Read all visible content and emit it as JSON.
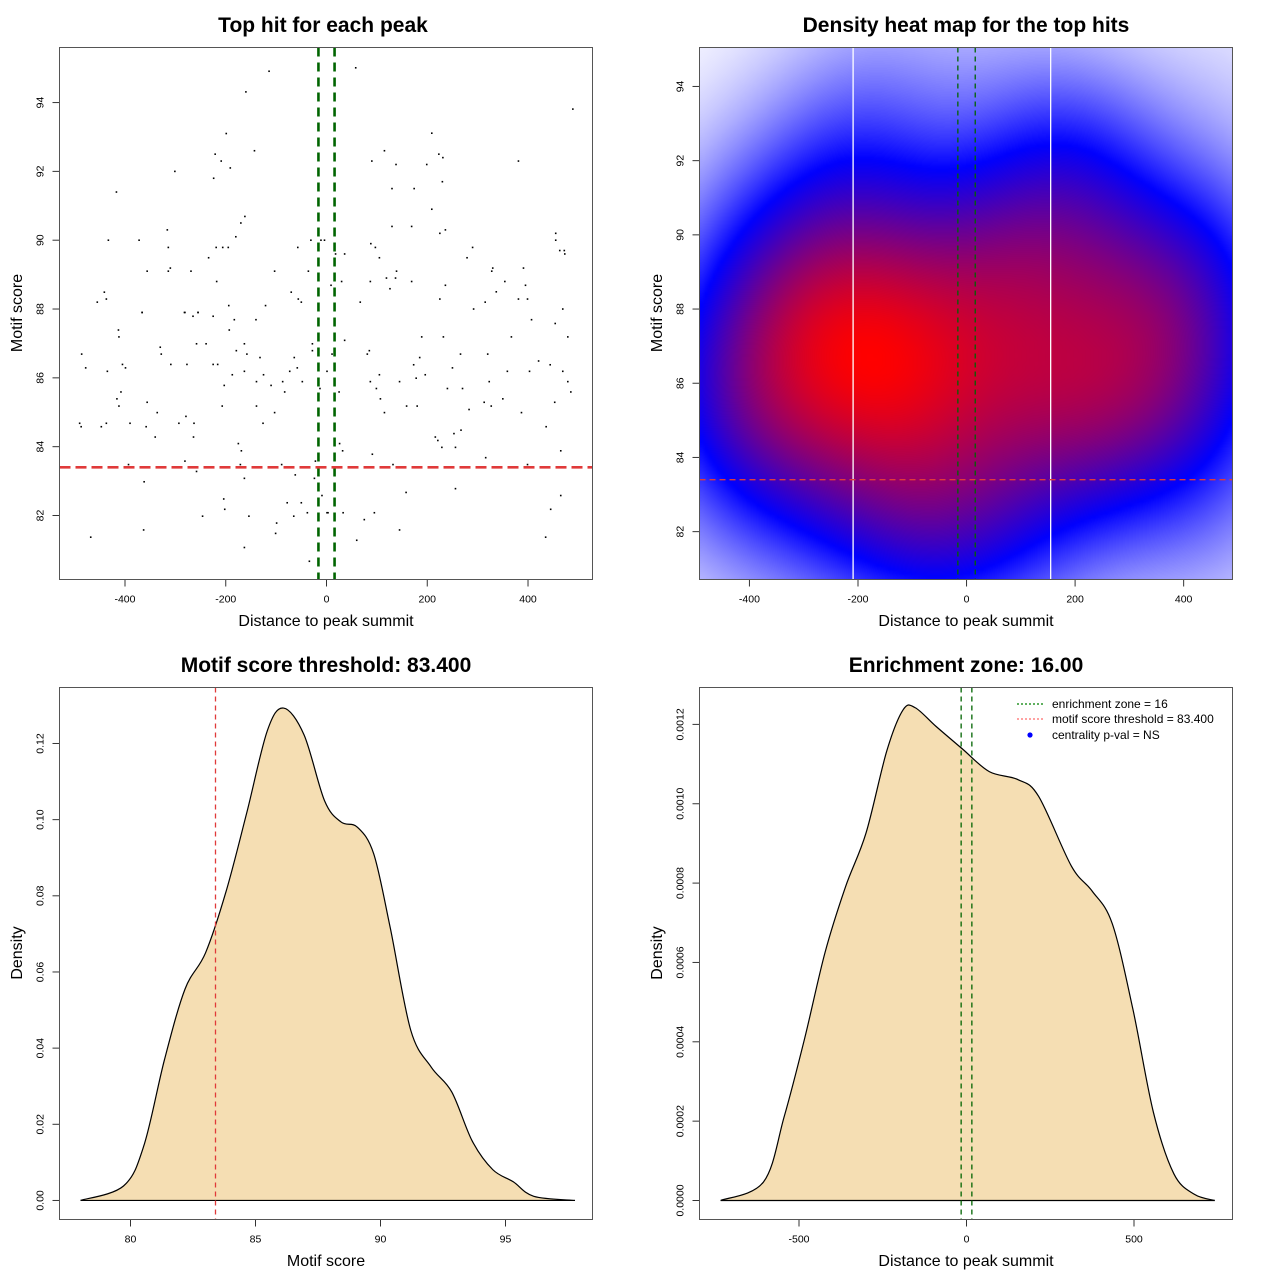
{
  "chart_data": [
    {
      "id": "scatter",
      "type": "scatter",
      "title": "Top hit for each peak",
      "xlabel": "Distance to peak summit",
      "ylabel": "Motif score",
      "xlim": [
        -530,
        528
      ],
      "ylim": [
        80.14,
        95.6
      ],
      "xticks": [
        -400,
        -200,
        0,
        200,
        400
      ],
      "yticks": [
        82,
        84,
        86,
        88,
        90,
        92,
        94
      ],
      "grid": false,
      "hlines": [
        {
          "value": 83.4,
          "color": "#e03a3a",
          "style": "dashed",
          "label": "motif score threshold"
        }
      ],
      "vlines": [
        {
          "value": -16,
          "color": "#006400",
          "style": "dashed"
        },
        {
          "value": 16,
          "color": "#006400",
          "style": "dashed"
        }
      ],
      "point_color": "#000000",
      "points": [
        [
          -486,
          86.69
        ],
        [
          -478,
          86.29
        ],
        [
          -435,
          86.19
        ],
        [
          -413,
          87.39
        ],
        [
          -412,
          87.19
        ],
        [
          -405,
          86.39
        ],
        [
          -399,
          86.29
        ],
        [
          -408,
          85.59
        ],
        [
          -416,
          85.39
        ],
        [
          -412,
          85.18
        ],
        [
          -490,
          84.68
        ],
        [
          -487,
          84.58
        ],
        [
          -447,
          84.58
        ],
        [
          -437,
          84.68
        ],
        [
          -390,
          84.68
        ],
        [
          -356,
          85.29
        ],
        [
          -358,
          84.58
        ],
        [
          -336,
          84.99
        ],
        [
          -340,
          84.28
        ],
        [
          -393,
          83.48
        ],
        [
          -362,
          82.98
        ],
        [
          -468,
          81.37
        ],
        [
          -363,
          81.58
        ],
        [
          -366,
          87.9
        ],
        [
          -330,
          86.89
        ],
        [
          -328,
          86.69
        ],
        [
          -309,
          86.39
        ],
        [
          -277,
          86.39
        ],
        [
          -293,
          84.68
        ],
        [
          -279,
          84.88
        ],
        [
          -263,
          84.68
        ],
        [
          -264,
          84.28
        ],
        [
          -281,
          83.58
        ],
        [
          -258,
          83.28
        ],
        [
          -282,
          87.9
        ],
        [
          -265,
          87.79
        ],
        [
          -255,
          87.9
        ],
        [
          -258,
          86.99
        ],
        [
          -239,
          86.99
        ],
        [
          -225,
          87.79
        ],
        [
          -225,
          86.39
        ],
        [
          -216,
          86.39
        ],
        [
          -183,
          87.69
        ],
        [
          -193,
          87.39
        ],
        [
          -163,
          86.99
        ],
        [
          -179,
          86.79
        ],
        [
          -158,
          86.69
        ],
        [
          -187,
          86.09
        ],
        [
          -163,
          86.19
        ],
        [
          -203,
          85.78
        ],
        [
          -207,
          85.18
        ],
        [
          -140,
          87.69
        ],
        [
          -132,
          86.59
        ],
        [
          -139,
          85.89
        ],
        [
          -125,
          86.09
        ],
        [
          -110,
          85.78
        ],
        [
          -139,
          85.18
        ],
        [
          -103,
          84.99
        ],
        [
          -126,
          84.68
        ],
        [
          -87,
          85.89
        ],
        [
          -83,
          85.59
        ],
        [
          -73,
          86.19
        ],
        [
          -64,
          86.59
        ],
        [
          -58,
          86.29
        ],
        [
          -48,
          85.89
        ],
        [
          -28,
          86.99
        ],
        [
          -28,
          86.79
        ],
        [
          -13,
          85.69
        ],
        [
          -175,
          84.09
        ],
        [
          -169,
          83.88
        ],
        [
          -171,
          83.48
        ],
        [
          -163,
          83.08
        ],
        [
          -89,
          83.48
        ],
        [
          -62,
          83.18
        ],
        [
          -22,
          83.58
        ],
        [
          -24,
          83.08
        ],
        [
          -9,
          82.58
        ],
        [
          -204,
          82.48
        ],
        [
          -202,
          82.18
        ],
        [
          -246,
          81.98
        ],
        [
          -154,
          81.98
        ],
        [
          -78,
          82.37
        ],
        [
          -50,
          82.37
        ],
        [
          -38,
          82.08
        ],
        [
          -65,
          81.98
        ],
        [
          -99,
          81.78
        ],
        [
          -101,
          81.48
        ],
        [
          -163,
          81.07
        ],
        [
          -34,
          80.67
        ],
        [
          3,
          82.08
        ],
        [
          36,
          87.09
        ],
        [
          11,
          86.69
        ],
        [
          1,
          86.19
        ],
        [
          25,
          85.59
        ],
        [
          85,
          86.79
        ],
        [
          81,
          86.69
        ],
        [
          105,
          86.09
        ],
        [
          87,
          85.89
        ],
        [
          99,
          85.69
        ],
        [
          107,
          85.39
        ],
        [
          115,
          84.99
        ],
        [
          189,
          87.19
        ],
        [
          232,
          87.19
        ],
        [
          185,
          86.59
        ],
        [
          173,
          86.38
        ],
        [
          196,
          86.09
        ],
        [
          178,
          85.99
        ],
        [
          145,
          85.89
        ],
        [
          159,
          85.18
        ],
        [
          180,
          85.18
        ],
        [
          250,
          86.29
        ],
        [
          266,
          86.69
        ],
        [
          240,
          85.69
        ],
        [
          270,
          85.69
        ],
        [
          283,
          85.08
        ],
        [
          320,
          86.69
        ],
        [
          323,
          85.89
        ],
        [
          313,
          85.29
        ],
        [
          327,
          85.18
        ],
        [
          350,
          85.39
        ],
        [
          367,
          87.19
        ],
        [
          359,
          86.19
        ],
        [
          387,
          84.99
        ],
        [
          407,
          87.69
        ],
        [
          454,
          87.58
        ],
        [
          479,
          87.19
        ],
        [
          421,
          86.49
        ],
        [
          444,
          86.38
        ],
        [
          403,
          86.19
        ],
        [
          469,
          86.19
        ],
        [
          479,
          85.89
        ],
        [
          485,
          85.59
        ],
        [
          453,
          85.29
        ],
        [
          436,
          84.58
        ],
        [
          465,
          83.88
        ],
        [
          26,
          84.09
        ],
        [
          32,
          83.88
        ],
        [
          91,
          83.78
        ],
        [
          132,
          83.48
        ],
        [
          216,
          84.28
        ],
        [
          221,
          84.18
        ],
        [
          229,
          83.98
        ],
        [
          253,
          84.38
        ],
        [
          267,
          84.48
        ],
        [
          256,
          83.98
        ],
        [
          316,
          83.68
        ],
        [
          399,
          83.48
        ],
        [
          158,
          82.67
        ],
        [
          256,
          82.78
        ],
        [
          465,
          82.58
        ],
        [
          445,
          82.18
        ],
        [
          435,
          81.37
        ],
        [
          33,
          82.08
        ],
        [
          95,
          82.08
        ],
        [
          75,
          81.88
        ],
        [
          145,
          81.58
        ],
        [
          60,
          81.28
        ],
        [
          1,
          82.08
        ],
        [
          -114,
          94.91
        ],
        [
          -160,
          94.31
        ],
        [
          -199,
          93.1
        ],
        [
          -143,
          92.6
        ],
        [
          -221,
          92.5
        ],
        [
          -209,
          92.3
        ],
        [
          -191,
          92.1
        ],
        [
          -301,
          92.0
        ],
        [
          -224,
          91.8
        ],
        [
          -417,
          91.4
        ],
        [
          -162,
          90.69
        ],
        [
          -170,
          90.5
        ],
        [
          -316,
          90.3
        ],
        [
          -180,
          90.1
        ],
        [
          -433,
          90.0
        ],
        [
          -372,
          90.0
        ],
        [
          -314,
          89.79
        ],
        [
          -219,
          89.79
        ],
        [
          -206,
          89.79
        ],
        [
          -195,
          89.79
        ],
        [
          -57,
          89.79
        ],
        [
          -31,
          90.0
        ],
        [
          -11,
          90.0
        ],
        [
          -4,
          90.0
        ],
        [
          -234,
          89.49
        ],
        [
          -310,
          89.19
        ],
        [
          -314,
          89.1
        ],
        [
          -356,
          89.1
        ],
        [
          -269,
          89.1
        ],
        [
          -103,
          89.1
        ],
        [
          -36,
          89.1
        ],
        [
          -218,
          88.8
        ],
        [
          -441,
          88.49
        ],
        [
          -437,
          88.29
        ],
        [
          -455,
          88.2
        ],
        [
          -70,
          88.49
        ],
        [
          -56,
          88.29
        ],
        [
          -50,
          88.2
        ],
        [
          -194,
          88.1
        ],
        [
          -121,
          88.1
        ],
        [
          -366,
          87.9
        ],
        [
          -281,
          87.9
        ],
        [
          -255,
          87.9
        ],
        [
          58,
          95.01
        ],
        [
          489,
          93.81
        ],
        [
          209,
          93.11
        ],
        [
          115,
          92.6
        ],
        [
          223,
          92.5
        ],
        [
          231,
          92.4
        ],
        [
          90,
          92.3
        ],
        [
          138,
          92.2
        ],
        [
          199,
          92.2
        ],
        [
          381,
          92.3
        ],
        [
          130,
          91.5
        ],
        [
          174,
          91.5
        ],
        [
          230,
          91.7
        ],
        [
          209,
          90.9
        ],
        [
          130,
          90.4
        ],
        [
          169,
          90.4
        ],
        [
          236,
          90.3
        ],
        [
          225,
          90.2
        ],
        [
          455,
          90.2
        ],
        [
          455,
          90.0
        ],
        [
          88,
          89.9
        ],
        [
          97,
          89.79
        ],
        [
          290,
          89.79
        ],
        [
          36,
          89.6
        ],
        [
          18,
          89.6
        ],
        [
          105,
          89.49
        ],
        [
          279,
          89.49
        ],
        [
          463,
          89.7
        ],
        [
          472,
          89.7
        ],
        [
          473,
          89.6
        ],
        [
          330,
          89.19
        ],
        [
          328,
          89.1
        ],
        [
          391,
          89.19
        ],
        [
          139,
          89.1
        ],
        [
          119,
          88.9
        ],
        [
          137,
          88.9
        ],
        [
          30,
          88.8
        ],
        [
          87,
          88.8
        ],
        [
          169,
          88.8
        ],
        [
          354,
          88.8
        ],
        [
          9,
          88.69
        ],
        [
          236,
          88.69
        ],
        [
          395,
          88.69
        ],
        [
          126,
          88.59
        ],
        [
          337,
          88.5
        ],
        [
          67,
          88.2
        ],
        [
          225,
          88.29
        ],
        [
          315,
          88.2
        ],
        [
          381,
          88.29
        ],
        [
          399,
          88.29
        ],
        [
          292,
          88.0
        ],
        [
          469,
          88.0
        ]
      ]
    },
    {
      "id": "heatmap",
      "type": "heatmap",
      "title": "Density heat map for the top hits",
      "xlabel": "Distance to peak summit",
      "ylabel": "Motif score",
      "xlim": [
        -492,
        490
      ],
      "ylim": [
        80.71,
        95.05
      ],
      "xticks": [
        -400,
        -200,
        0,
        200,
        400
      ],
      "yticks": [
        82,
        84,
        86,
        88,
        90,
        92,
        94
      ],
      "source": "2D kernel density of the scatter points",
      "bandwidth": [
        120,
        2.0
      ],
      "palette": [
        "#ffffff",
        "#0000ff",
        "#ff0000"
      ],
      "hlines": [
        {
          "value": 83.4,
          "color": "#e03a3a",
          "style": "dashed"
        }
      ],
      "vlines": [
        {
          "value": -209,
          "color": "#ffffff",
          "style": "solid"
        },
        {
          "value": 155,
          "color": "#ffffff",
          "style": "solid"
        },
        {
          "value": -16,
          "color": "#006400",
          "style": "dashed"
        },
        {
          "value": 16,
          "color": "#006400",
          "style": "dashed"
        }
      ]
    },
    {
      "id": "score-density",
      "type": "area",
      "title": "Motif score threshold: 83.400",
      "xlabel": "Motif score",
      "ylabel": "Density",
      "xlim": [
        77.16,
        98.48
      ],
      "ylim": [
        -0.005,
        0.1347
      ],
      "xticks": [
        80,
        85,
        90,
        95
      ],
      "yticks": [
        "0.00",
        "0.02",
        "0.04",
        "0.06",
        "0.08",
        "0.10",
        "0.12"
      ],
      "fill": "#f5deb3",
      "vlines": [
        {
          "value": 83.4,
          "color": "#e03a3a",
          "style": "dashed"
        }
      ],
      "x": [
        78.0,
        79.72,
        80.54,
        81.36,
        82.18,
        83.0,
        83.83,
        84.65,
        85.47,
        86.12,
        86.94,
        87.76,
        88.42,
        89.08,
        89.73,
        90.39,
        91.21,
        92.03,
        92.85,
        93.67,
        94.49,
        95.31,
        96.13,
        97.78
      ],
      "y": [
        0.0,
        0.0038,
        0.0145,
        0.037,
        0.0555,
        0.065,
        0.0813,
        0.1018,
        0.1233,
        0.1293,
        0.1223,
        0.105,
        0.0994,
        0.098,
        0.091,
        0.0716,
        0.0447,
        0.035,
        0.0285,
        0.0156,
        0.0081,
        0.0049,
        0.0011,
        0.0
      ]
    },
    {
      "id": "distance-density",
      "type": "area",
      "title": "Enrichment zone: 16.00",
      "xlabel": "Distance to peak summit",
      "ylabel": "Density",
      "xlim": [
        -797,
        794
      ],
      "ylim": [
        -4.79e-05,
        0.001293
      ],
      "xticks": [
        -500,
        0,
        500
      ],
      "yticks": [
        "0.0000",
        "0.0002",
        "0.0004",
        "0.0006",
        "0.0008",
        "0.0010",
        "0.0012"
      ],
      "fill": "#f5deb3",
      "vlines": [
        {
          "value": -16,
          "color": "#006400",
          "style": "dashed"
        },
        {
          "value": 16,
          "color": "#006400",
          "style": "dashed"
        }
      ],
      "x": [
        -734,
        -606,
        -544,
        -483,
        -422,
        -361,
        -300,
        -238,
        -189,
        -153,
        -91,
        -12,
        68,
        153,
        215,
        313,
        374,
        435,
        497,
        558,
        619,
        680,
        741
      ],
      "y": [
        0.0,
        4.67e-05,
        0.000212,
        0.000409,
        0.000626,
        0.000791,
        0.000926,
        0.001133,
        0.001237,
        0.001242,
        0.001195,
        0.001138,
        0.001081,
        0.001061,
        0.001019,
        0.000843,
        0.000781,
        0.000698,
        0.000481,
        0.000222,
        6.73e-05,
        1.56e-05,
        0.0
      ],
      "legend": {
        "placement": "top-right",
        "items": [
          {
            "label": "enrichment zone = 16",
            "symbol": "dotted-line",
            "color": "#008000"
          },
          {
            "label": "motif score threshold = 83.400",
            "symbol": "dotted-line",
            "color": "#ff6a6a"
          },
          {
            "label": "centrality p-val = NS",
            "symbol": "dot",
            "color": "#0000ff"
          }
        ]
      }
    }
  ]
}
